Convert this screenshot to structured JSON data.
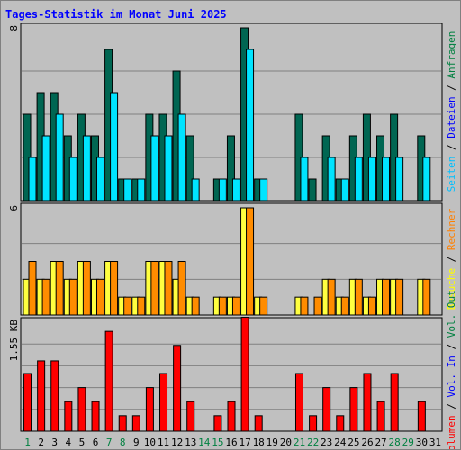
{
  "title": "Tages-Statistik im Monat Juni 2025",
  "right_label_top": [
    {
      "text": "Seiten",
      "color": "#00c0ff"
    },
    {
      "text": " / ",
      "color": "#000000"
    },
    {
      "text": "Dateien",
      "color": "#0000ff"
    },
    {
      "text": " / ",
      "color": "#000000"
    },
    {
      "text": "Anfragen",
      "color": "#008040"
    }
  ],
  "right_label_mid": [
    {
      "text": "Besuche",
      "color": "#ffff00"
    },
    {
      "text": " / ",
      "color": "#000000"
    },
    {
      "text": "Rechner",
      "color": "#ff8000"
    }
  ],
  "right_label_bot": [
    {
      "text": "Volumen",
      "color": "#ff0000"
    },
    {
      "text": " / ",
      "color": "#000000"
    },
    {
      "text": "Vol. In",
      "color": "#0000ff"
    },
    {
      "text": " / ",
      "color": "#000000"
    },
    {
      "text": "Vol. Out",
      "color": "#008040"
    }
  ],
  "chart_data": {
    "type": "bar",
    "categories": [
      "1",
      "2",
      "3",
      "4",
      "5",
      "6",
      "7",
      "8",
      "9",
      "10",
      "11",
      "12",
      "13",
      "14",
      "15",
      "16",
      "17",
      "18",
      "19",
      "20",
      "21",
      "22",
      "23",
      "24",
      "25",
      "26",
      "27",
      "28",
      "29",
      "30",
      "31"
    ],
    "weekend_days": [
      "1",
      "7",
      "8",
      "14",
      "15",
      "21",
      "22",
      "28",
      "29"
    ],
    "panels": [
      {
        "name": "top",
        "ymax_label": "8",
        "ymax": 8,
        "series": [
          {
            "name": "Anfragen",
            "color": "#006652",
            "values": [
              4,
              5,
              5,
              3,
              4,
              3,
              7,
              1,
              1,
              4,
              4,
              6,
              3,
              0,
              1,
              3,
              8,
              1,
              0,
              0,
              4,
              1,
              3,
              1,
              3,
              4,
              3,
              4,
              0,
              3,
              0
            ]
          },
          {
            "name": "Seiten",
            "color": "#00e4ff",
            "values": [
              2,
              3,
              4,
              2,
              3,
              2,
              5,
              1,
              1,
              3,
              3,
              4,
              1,
              0,
              1,
              1,
              7,
              1,
              0,
              0,
              2,
              0,
              2,
              1,
              2,
              2,
              2,
              2,
              0,
              2,
              0
            ]
          }
        ]
      },
      {
        "name": "mid",
        "ymax_label": "6",
        "ymax": 6,
        "series": [
          {
            "name": "Besuche",
            "color": "#ffff40",
            "values": [
              2,
              2,
              3,
              2,
              3,
              2,
              3,
              1,
              1,
              3,
              3,
              2,
              1,
              0,
              1,
              1,
              6,
              1,
              0,
              0,
              1,
              0,
              2,
              1,
              2,
              1,
              2,
              2,
              0,
              2,
              0
            ]
          },
          {
            "name": "Rechner",
            "color": "#ff8c00",
            "values": [
              3,
              2,
              3,
              2,
              3,
              2,
              3,
              1,
              1,
              3,
              3,
              3,
              1,
              0,
              1,
              1,
              6,
              1,
              0,
              0,
              1,
              1,
              2,
              1,
              2,
              1,
              2,
              2,
              0,
              2,
              0
            ]
          }
        ]
      },
      {
        "name": "bot",
        "ymax_label": "1.55 KB",
        "ymax": 1.55,
        "series": [
          {
            "name": "Volumen",
            "color": "#ff0000",
            "values": [
              0.82,
              1.0,
              1.0,
              0.42,
              0.62,
              0.42,
              1.42,
              0.22,
              0.22,
              0.62,
              0.82,
              1.22,
              0.42,
              0,
              0.22,
              0.42,
              1.62,
              0.22,
              0,
              0,
              0.82,
              0.22,
              0.62,
              0.22,
              0.62,
              0.82,
              0.42,
              0.82,
              0,
              0.42,
              0
            ]
          }
        ]
      }
    ]
  }
}
